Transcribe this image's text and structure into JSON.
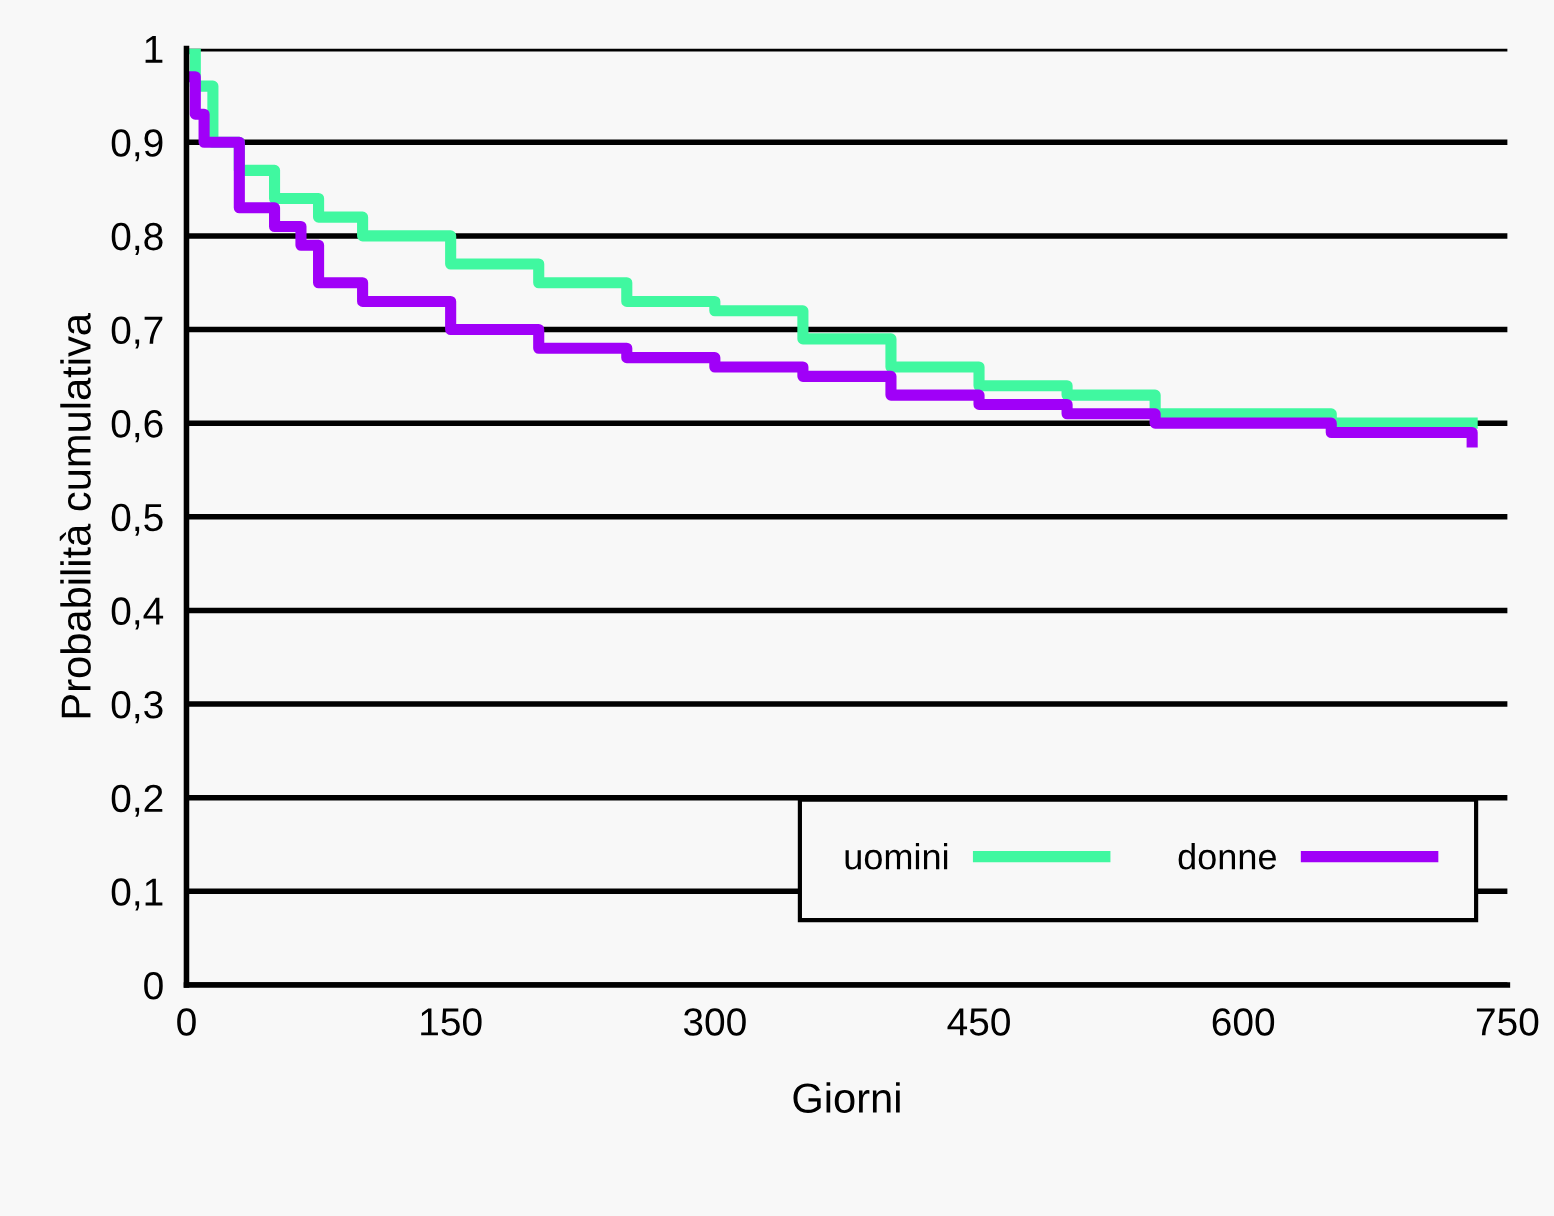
{
  "chart_data": {
    "type": "step",
    "xlabel": "Giorni",
    "ylabel": "Probabilità cumulativa",
    "xlim": [
      0,
      750
    ],
    "xticks": [
      0,
      150,
      300,
      450,
      600,
      750
    ],
    "ylim": [
      0,
      1
    ],
    "yticks": [
      {
        "value": 0,
        "label": "0"
      },
      {
        "value": 0.1,
        "label": "0,1"
      },
      {
        "value": 0.2,
        "label": "0,2"
      },
      {
        "value": 0.3,
        "label": "0,3"
      },
      {
        "value": 0.4,
        "label": "0,4"
      },
      {
        "value": 0.5,
        "label": "0,5"
      },
      {
        "value": 0.6,
        "label": "0,6"
      },
      {
        "value": 0.7,
        "label": "0,7"
      },
      {
        "value": 0.8,
        "label": "0,8"
      },
      {
        "value": 0.9,
        "label": "0,9"
      },
      {
        "value": 1,
        "label": "1"
      }
    ],
    "grid": "y",
    "legend": "bottom right",
    "series": [
      {
        "name": "uomini",
        "color": "#40f8a0",
        "x": [
          0,
          5,
          15,
          30,
          50,
          75,
          100,
          150,
          200,
          250,
          300,
          350,
          400,
          450,
          500,
          550,
          600,
          650,
          730
        ],
        "values": [
          1,
          0.96,
          0.9,
          0.87,
          0.84,
          0.82,
          0.8,
          0.77,
          0.75,
          0.73,
          0.72,
          0.69,
          0.66,
          0.64,
          0.63,
          0.61,
          0.61,
          0.6,
          0.6
        ]
      },
      {
        "name": "donne",
        "color": "#a000f8",
        "x": [
          0,
          5,
          10,
          30,
          50,
          65,
          75,
          100,
          150,
          200,
          250,
          300,
          350,
          400,
          450,
          500,
          550,
          600,
          650,
          730
        ],
        "values": [
          0.97,
          0.93,
          0.9,
          0.83,
          0.81,
          0.79,
          0.75,
          0.73,
          0.7,
          0.68,
          0.67,
          0.66,
          0.65,
          0.63,
          0.62,
          0.61,
          0.6,
          0.6,
          0.59,
          0.58
        ]
      }
    ]
  }
}
